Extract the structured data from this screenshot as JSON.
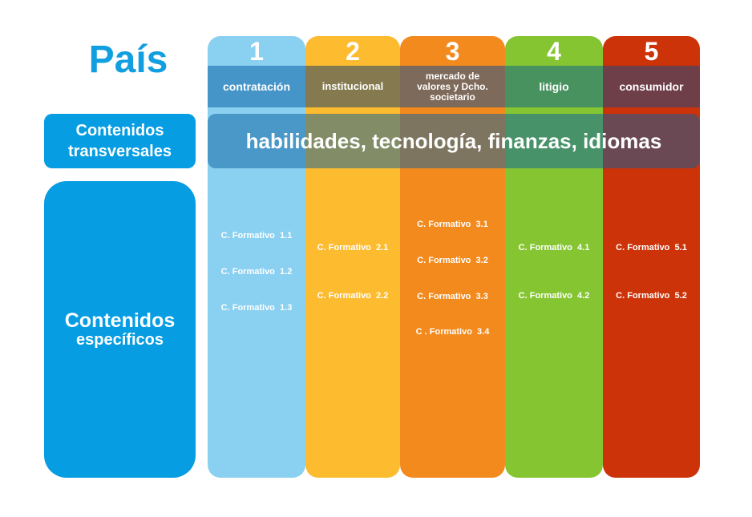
{
  "title": "País",
  "left": {
    "transversal_line1": "Contenidos",
    "transversal_line2": "transversales",
    "specific_line1": "Contenidos",
    "specific_line2": "específicos"
  },
  "transversal_band": "habilidades, tecnología, finanzas, idiomas",
  "colors": {
    "blue": "#069de2",
    "col1": "#8ad0f1",
    "col2": "#fdbb30",
    "col3": "#f38a1e",
    "col4": "#86c532",
    "col5": "#cd3309"
  },
  "columns": [
    {
      "number": "1",
      "label": "contratación",
      "courses": [
        "C. Formativo  1.1",
        "C. Formativo  1.2",
        "C. Formativo  1.3"
      ]
    },
    {
      "number": "2",
      "label": "institucional",
      "courses": [
        "C. Formativo  2.1",
        "C. Formativo  2.2"
      ]
    },
    {
      "number": "3",
      "label_lines": [
        "mercado de",
        "valores y Dcho.",
        "societario"
      ],
      "courses": [
        "C. Formativo  3.1",
        "C. Formativo  3.2",
        "C. Formativo  3.3",
        "C . Formativo  3.4"
      ]
    },
    {
      "number": "4",
      "label": "litigio",
      "courses": [
        "C. Formativo  4.1",
        "C. Formativo  4.2"
      ]
    },
    {
      "number": "5",
      "label": "consumidor",
      "courses": [
        "C. Formativo  5.1",
        "C. Formativo  5.2"
      ]
    }
  ]
}
